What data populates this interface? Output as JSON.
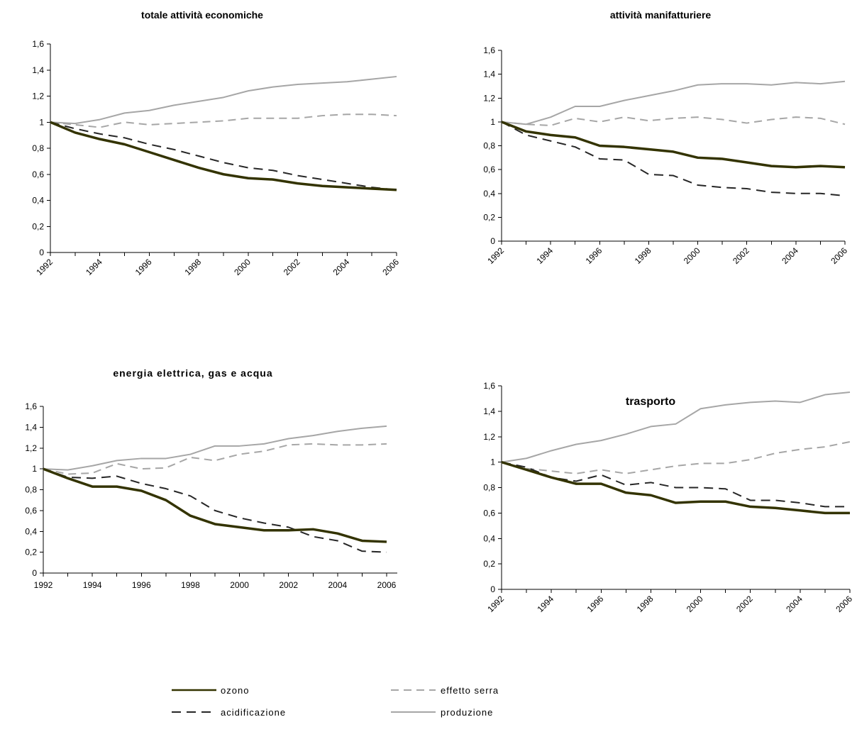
{
  "styles": {
    "ozono": {
      "color": "#333300",
      "width": 3.5,
      "dash": ""
    },
    "effetto_serra": {
      "color": "#a6a6a6",
      "width": 2,
      "dash": "11,7"
    },
    "acidificazione": {
      "color": "#262626",
      "width": 2,
      "dash": "13,8"
    },
    "produzione": {
      "color": "#a6a6a6",
      "width": 2,
      "dash": ""
    }
  },
  "legend": {
    "items": [
      {
        "key": "ozono",
        "label": "ozono"
      },
      {
        "key": "effetto_serra",
        "label": "effetto serra"
      },
      {
        "key": "acidificazione",
        "label": "acidificazione"
      },
      {
        "key": "produzione",
        "label": "produzione"
      }
    ]
  },
  "chart_data": [
    {
      "type": "line",
      "title": "totale attività economiche",
      "x": [
        1992,
        1993,
        1994,
        1995,
        1996,
        1997,
        1998,
        1999,
        2000,
        2001,
        2002,
        2003,
        2004,
        2005,
        2006
      ],
      "xticks": [
        "1992",
        "1994",
        "1996",
        "1998",
        "2000",
        "2002",
        "2004",
        "2006"
      ],
      "yticks": [
        "0",
        "0,2",
        "0,4",
        "0,6",
        "0,8",
        "1",
        "1,2",
        "1,4",
        "1,6"
      ],
      "ylim": [
        0,
        1.6
      ],
      "xlabel_rotation": "diagonal",
      "series": [
        {
          "key": "produzione",
          "name": "produzione",
          "values": [
            1.0,
            0.99,
            1.02,
            1.07,
            1.09,
            1.13,
            1.16,
            1.19,
            1.24,
            1.27,
            1.29,
            1.3,
            1.31,
            1.33,
            1.35
          ]
        },
        {
          "key": "effetto_serra",
          "name": "effetto serra",
          "values": [
            1.0,
            0.98,
            0.96,
            1.0,
            0.98,
            0.99,
            1.0,
            1.01,
            1.03,
            1.03,
            1.03,
            1.05,
            1.06,
            1.06,
            1.05
          ]
        },
        {
          "key": "acidificazione",
          "name": "acidificazione",
          "values": [
            1.0,
            0.95,
            0.91,
            0.88,
            0.83,
            0.79,
            0.74,
            0.69,
            0.65,
            0.63,
            0.59,
            0.56,
            0.53,
            0.5,
            0.48
          ]
        },
        {
          "key": "ozono",
          "name": "ozono",
          "values": [
            1.0,
            0.92,
            0.87,
            0.83,
            0.77,
            0.71,
            0.65,
            0.6,
            0.57,
            0.56,
            0.53,
            0.51,
            0.5,
            0.49,
            0.48
          ]
        }
      ]
    },
    {
      "type": "line",
      "title": "attività manifatturiere",
      "x": [
        1992,
        1993,
        1994,
        1995,
        1996,
        1997,
        1998,
        1999,
        2000,
        2001,
        2002,
        2003,
        2004,
        2005,
        2006
      ],
      "xticks": [
        "1992",
        "1994",
        "1996",
        "1998",
        "2000",
        "2002",
        "2004",
        "2006"
      ],
      "yticks": [
        "0",
        "0,2",
        "0,4",
        "0,6",
        "0,8",
        "1",
        "1,2",
        "1,4",
        "1,6"
      ],
      "ylim": [
        0,
        1.6
      ],
      "xlabel_rotation": "diagonal",
      "series": [
        {
          "key": "produzione",
          "name": "produzione",
          "values": [
            1.0,
            0.98,
            1.04,
            1.13,
            1.13,
            1.18,
            1.22,
            1.26,
            1.31,
            1.32,
            1.32,
            1.31,
            1.33,
            1.32,
            1.34
          ]
        },
        {
          "key": "effetto_serra",
          "name": "effetto serra",
          "values": [
            1.0,
            0.98,
            0.97,
            1.03,
            1.0,
            1.04,
            1.01,
            1.03,
            1.04,
            1.02,
            0.99,
            1.02,
            1.04,
            1.03,
            0.98
          ]
        },
        {
          "key": "acidificazione",
          "name": "acidificazione",
          "values": [
            1.0,
            0.89,
            0.84,
            0.79,
            0.69,
            0.68,
            0.56,
            0.55,
            0.47,
            0.45,
            0.44,
            0.41,
            0.4,
            0.4,
            0.38
          ]
        },
        {
          "key": "ozono",
          "name": "ozono",
          "values": [
            1.0,
            0.92,
            0.89,
            0.87,
            0.8,
            0.79,
            0.77,
            0.75,
            0.7,
            0.69,
            0.66,
            0.63,
            0.62,
            0.63,
            0.62
          ]
        }
      ]
    },
    {
      "type": "line",
      "title": "energia elettrica, gas e acqua",
      "x": [
        1992,
        1993,
        1994,
        1995,
        1996,
        1997,
        1998,
        1999,
        2000,
        2001,
        2002,
        2003,
        2004,
        2005,
        2006
      ],
      "xticks": [
        "1992",
        "1994",
        "1996",
        "1998",
        "2000",
        "2002",
        "2004",
        "2006"
      ],
      "yticks": [
        "0",
        "0,2",
        "0,4",
        "0,6",
        "0,8",
        "1",
        "1,2",
        "1,4",
        "1,6"
      ],
      "ylim": [
        0,
        1.6
      ],
      "xlabel_rotation": "horizontal",
      "series": [
        {
          "key": "produzione",
          "name": "produzione",
          "values": [
            1.0,
            0.99,
            1.03,
            1.08,
            1.1,
            1.1,
            1.14,
            1.22,
            1.22,
            1.24,
            1.29,
            1.32,
            1.36,
            1.39,
            1.41
          ]
        },
        {
          "key": "effetto_serra",
          "name": "effetto serra",
          "values": [
            1.0,
            0.95,
            0.96,
            1.05,
            1.0,
            1.01,
            1.11,
            1.08,
            1.14,
            1.17,
            1.23,
            1.24,
            1.23,
            1.23,
            1.24
          ]
        },
        {
          "key": "acidificazione",
          "name": "acidificazione",
          "values": [
            1.0,
            0.92,
            0.91,
            0.93,
            0.86,
            0.81,
            0.74,
            0.6,
            0.53,
            0.48,
            0.44,
            0.35,
            0.31,
            0.21,
            0.2
          ]
        },
        {
          "key": "ozono",
          "name": "ozono",
          "values": [
            1.0,
            0.91,
            0.83,
            0.83,
            0.79,
            0.7,
            0.55,
            0.47,
            0.44,
            0.41,
            0.41,
            0.42,
            0.38,
            0.31,
            0.3
          ]
        }
      ]
    },
    {
      "type": "line",
      "title": "trasporto",
      "x": [
        1992,
        1993,
        1994,
        1995,
        1996,
        1997,
        1998,
        1999,
        2000,
        2001,
        2002,
        2003,
        2004,
        2005,
        2006
      ],
      "xticks": [
        "1992",
        "1994",
        "1996",
        "1998",
        "2000",
        "2002",
        "2004",
        "2006"
      ],
      "yticks": [
        "0",
        "0,2",
        "0,4",
        "0,6",
        "0,8",
        "1",
        "1,2",
        "1,4",
        "1,6"
      ],
      "ylim": [
        0,
        1.6
      ],
      "xlabel_rotation": "diagonal",
      "series": [
        {
          "key": "produzione",
          "name": "produzione",
          "values": [
            1.0,
            1.03,
            1.09,
            1.14,
            1.17,
            1.22,
            1.28,
            1.3,
            1.42,
            1.45,
            1.47,
            1.48,
            1.47,
            1.53,
            1.55
          ]
        },
        {
          "key": "effetto_serra",
          "name": "effetto serra",
          "values": [
            1.0,
            0.95,
            0.93,
            0.91,
            0.94,
            0.91,
            0.94,
            0.97,
            0.99,
            0.99,
            1.02,
            1.07,
            1.1,
            1.12,
            1.16
          ]
        },
        {
          "key": "acidificazione",
          "name": "acidificazione",
          "values": [
            1.0,
            0.96,
            0.88,
            0.85,
            0.9,
            0.82,
            0.84,
            0.8,
            0.8,
            0.79,
            0.7,
            0.7,
            0.68,
            0.65,
            0.65
          ]
        },
        {
          "key": "ozono",
          "name": "ozono",
          "values": [
            1.0,
            0.94,
            0.88,
            0.83,
            0.83,
            0.76,
            0.74,
            0.68,
            0.69,
            0.69,
            0.65,
            0.64,
            0.62,
            0.6,
            0.6
          ]
        }
      ]
    }
  ]
}
